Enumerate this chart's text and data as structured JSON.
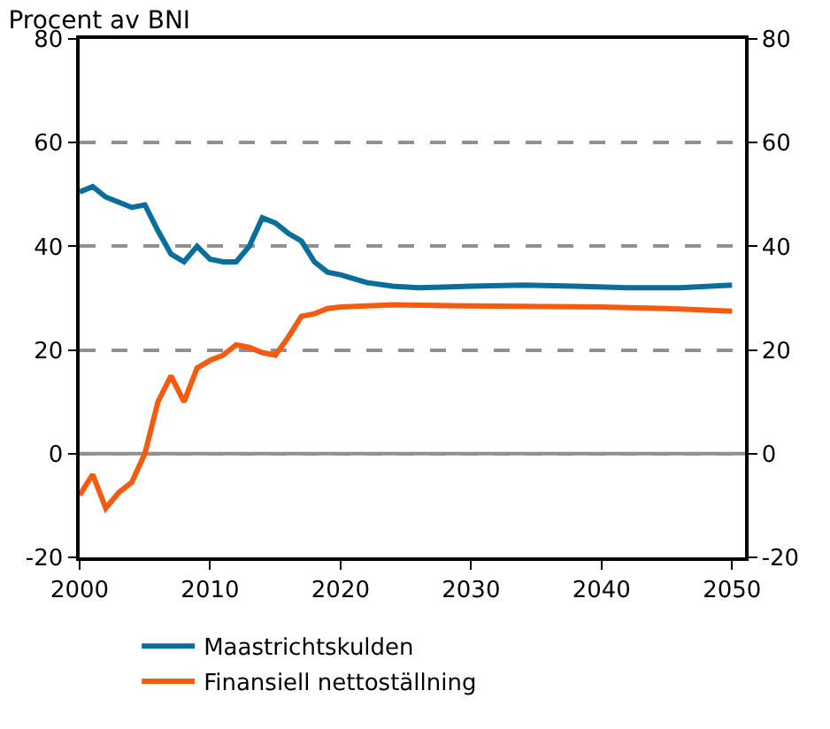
{
  "chart_data": {
    "type": "line",
    "title": "Procent av BNI",
    "xlim": [
      2000,
      2051
    ],
    "xticks": [
      2000,
      2010,
      2020,
      2030,
      2040,
      2050
    ],
    "ylim": [
      -20,
      80
    ],
    "yticks": [
      -20,
      0,
      20,
      40,
      60,
      80
    ],
    "y2lim": [
      -20,
      80
    ],
    "y2ticks": [
      -20,
      0,
      20,
      40,
      60,
      80
    ],
    "grid": "y",
    "legend": "bottom",
    "line_style": "solid",
    "marker": "none",
    "ref_lines": [
      {
        "axis": "y",
        "value": 0,
        "label": null,
        "color": "#909090",
        "line_style": "solid"
      }
    ],
    "series": [
      {
        "name": "Maastrichtskulden",
        "color": "#0a6e9a",
        "x": [
          2000,
          2001,
          2002,
          2003,
          2004,
          2005,
          2006,
          2007,
          2008,
          2009,
          2010,
          2011,
          2012,
          2013,
          2014,
          2015,
          2016,
          2017,
          2018,
          2019,
          2020,
          2022,
          2024,
          2026,
          2030,
          2034,
          2038,
          2042,
          2046,
          2050
        ],
        "values": [
          50.5,
          51.5,
          49.5,
          48.5,
          47.5,
          48,
          43,
          38.5,
          37,
          40,
          37.5,
          37,
          37,
          40,
          45.5,
          44.5,
          42.5,
          41,
          37,
          35,
          34.5,
          33,
          32.3,
          32,
          32.3,
          32.5,
          32.3,
          32,
          32,
          32.5
        ]
      },
      {
        "name": "Finansiell nettoställning",
        "color": "#f55a0f",
        "x": [
          2000,
          2001,
          2002,
          2003,
          2004,
          2005,
          2006,
          2007,
          2008,
          2009,
          2010,
          2011,
          2012,
          2013,
          2014,
          2015,
          2016,
          2017,
          2018,
          2019,
          2020,
          2024,
          2030,
          2040,
          2045,
          2050
        ],
        "values": [
          -8,
          -4,
          -10.5,
          -7.5,
          -5.5,
          0,
          10,
          15,
          10,
          16.5,
          18,
          19,
          21,
          20.5,
          19.5,
          19,
          22.5,
          26.5,
          27,
          28,
          28.3,
          28.7,
          28.5,
          28.3,
          28,
          27.5
        ]
      }
    ]
  }
}
